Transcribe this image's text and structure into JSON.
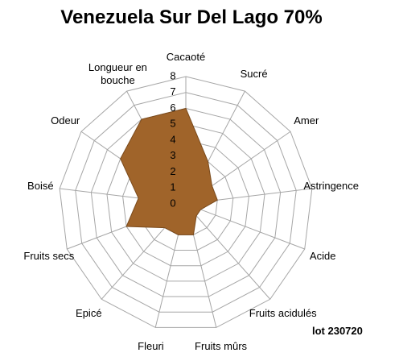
{
  "chart_data": {
    "type": "radar",
    "title": "Venezuela Sur Del Lago 70%",
    "annotation": "lot 230720",
    "categories": [
      "Cacaoté",
      "Sucré",
      "Amer",
      "Astringence",
      "Acide",
      "Fruits acidulés",
      "Fruits mûrs",
      "Fleuri",
      "Epicé",
      "Fruits secs",
      "Boisé",
      "Odeur",
      "Longueur en bouche"
    ],
    "values": [
      6,
      3,
      2,
      2,
      1,
      1,
      2,
      2,
      2,
      4,
      3,
      5,
      6
    ],
    "color": "#a0642a",
    "rlim": [
      0,
      8
    ],
    "rticks": [
      0,
      1,
      2,
      3,
      4,
      5,
      6,
      7,
      8
    ],
    "grid": true
  }
}
